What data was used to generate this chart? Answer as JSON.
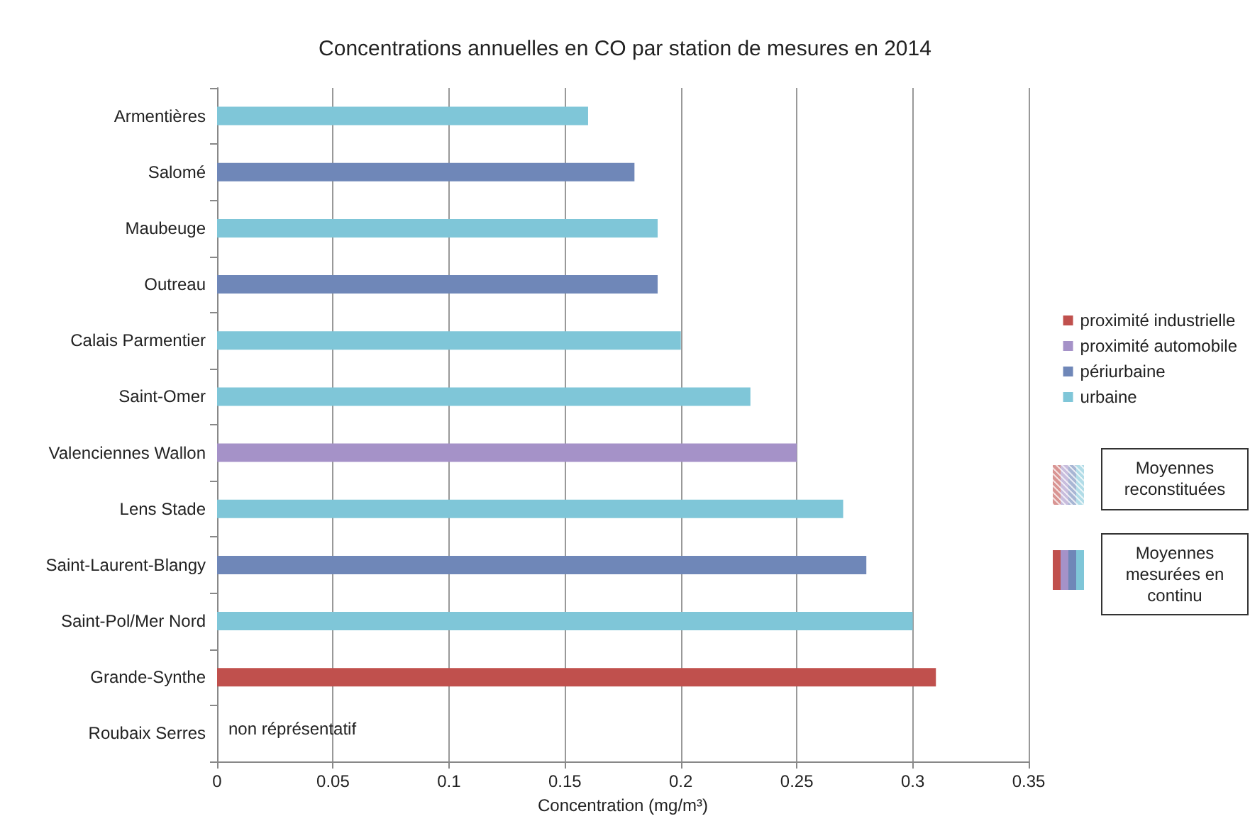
{
  "chart_data": {
    "type": "bar",
    "orientation": "horizontal",
    "stacked": true,
    "title": "Concentrations annuelles en CO par station de mesures en 2014",
    "xlabel": "Concentration (mg/m³)",
    "categories": [
      "Armentières",
      "Salomé",
      "Maubeuge",
      "Outreau",
      "Calais Parmentier",
      "Saint-Omer",
      "Valenciennes Wallon",
      "Lens Stade",
      "Saint-Laurent-Blangy",
      "Saint-Pol/Mer Nord",
      "Grande-Synthe",
      "Roubaix Serres"
    ],
    "series": [
      {
        "name": "proximité industrielle",
        "color": "#c0504d",
        "values": [
          null,
          null,
          null,
          null,
          null,
          null,
          null,
          null,
          null,
          null,
          0.31,
          null
        ]
      },
      {
        "name": "proximité automobile",
        "color": "#a592c8",
        "values": [
          null,
          null,
          null,
          null,
          null,
          null,
          0.25,
          null,
          null,
          null,
          null,
          null
        ]
      },
      {
        "name": "périurbaine",
        "color": "#6f87b8",
        "values": [
          null,
          0.18,
          null,
          0.19,
          null,
          null,
          null,
          null,
          0.28,
          null,
          null,
          null
        ]
      },
      {
        "name": "urbaine",
        "color": "#7fc6d8",
        "values": [
          0.16,
          null,
          0.19,
          null,
          0.2,
          0.23,
          null,
          0.27,
          null,
          0.3,
          null,
          null
        ]
      }
    ],
    "xlim": [
      0,
      0.35
    ],
    "xticks": [
      0,
      0.05,
      0.1,
      0.15,
      0.2,
      0.25,
      0.3,
      0.35
    ],
    "grid": "x",
    "legend": "right",
    "annotations": [
      "non réprésentatif",
      "Moyennes reconstituées",
      "Moyennes mesurées en continu"
    ]
  }
}
